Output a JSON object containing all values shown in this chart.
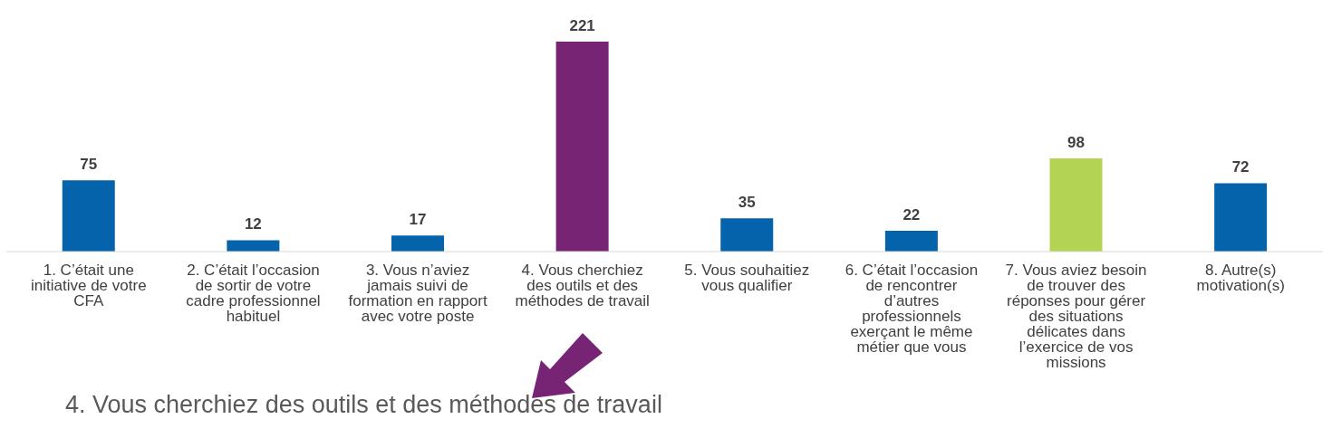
{
  "chart_data": {
    "type": "bar",
    "categories": [
      "1. C’était une initiative de votre CFA",
      "2. C’était l’occasion de sortir de votre cadre professionnel habituel",
      "3. Vous n’aviez jamais suivi de formation en rapport avec votre poste",
      "4. Vous cherchiez des outils et des méthodes de travail",
      "5. Vous souhaitiez vous qualifier",
      "6. C’était l’occasion de rencontrer d’autres professionnels exerçant le même métier que vous",
      "7. Vous aviez besoin de trouver des réponses pour gérer des situations délicates dans l’exercice de vos missions",
      "8. Autre(s) motivation(s)"
    ],
    "values": [
      75,
      12,
      17,
      221,
      35,
      22,
      98,
      72
    ],
    "colors": [
      "#0563ab",
      "#0563ab",
      "#0563ab",
      "#772475",
      "#0563ab",
      "#0563ab",
      "#b3d452",
      "#0563ab"
    ],
    "data_labels": true,
    "annotations": [
      "4. Vous cherchiez des outils et des méthodes de travail"
    ]
  }
}
